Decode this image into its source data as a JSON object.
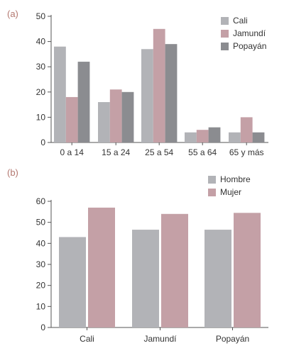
{
  "chart_data": [
    {
      "panel_label": "(a)",
      "type": "bar",
      "categories": [
        "0 a 14",
        "15 a 24",
        "25 a 54",
        "55 a 64",
        "65 y más"
      ],
      "series": [
        {
          "name": "Cali",
          "values": [
            38,
            16,
            37,
            4,
            4
          ],
          "color": "#b2b3b7"
        },
        {
          "name": "Jamundí",
          "values": [
            18,
            21,
            45,
            5,
            10
          ],
          "color": "#c4a0a6"
        },
        {
          "name": "Popayán",
          "values": [
            32,
            20,
            39,
            6,
            4
          ],
          "color": "#8b8c90"
        }
      ],
      "ylim": [
        0,
        50
      ],
      "yticks": [
        0,
        10,
        20,
        30,
        40,
        50
      ],
      "legend": "top-right",
      "grid": false
    },
    {
      "panel_label": "(b)",
      "type": "bar",
      "categories": [
        "Cali",
        "Jamundí",
        "Popayán"
      ],
      "series": [
        {
          "name": "Hombre",
          "values": [
            43,
            46.5,
            46.5
          ],
          "color": "#b2b3b7"
        },
        {
          "name": "Mujer",
          "values": [
            57,
            54,
            54.5
          ],
          "color": "#c4a0a6"
        }
      ],
      "ylim": [
        0,
        60
      ],
      "yticks": [
        0,
        10,
        20,
        30,
        40,
        50,
        60
      ],
      "legend": "top-right",
      "grid": false
    }
  ],
  "colors": {
    "panel_label": "#b3776f",
    "axis": "#555555",
    "text": "#333333"
  }
}
